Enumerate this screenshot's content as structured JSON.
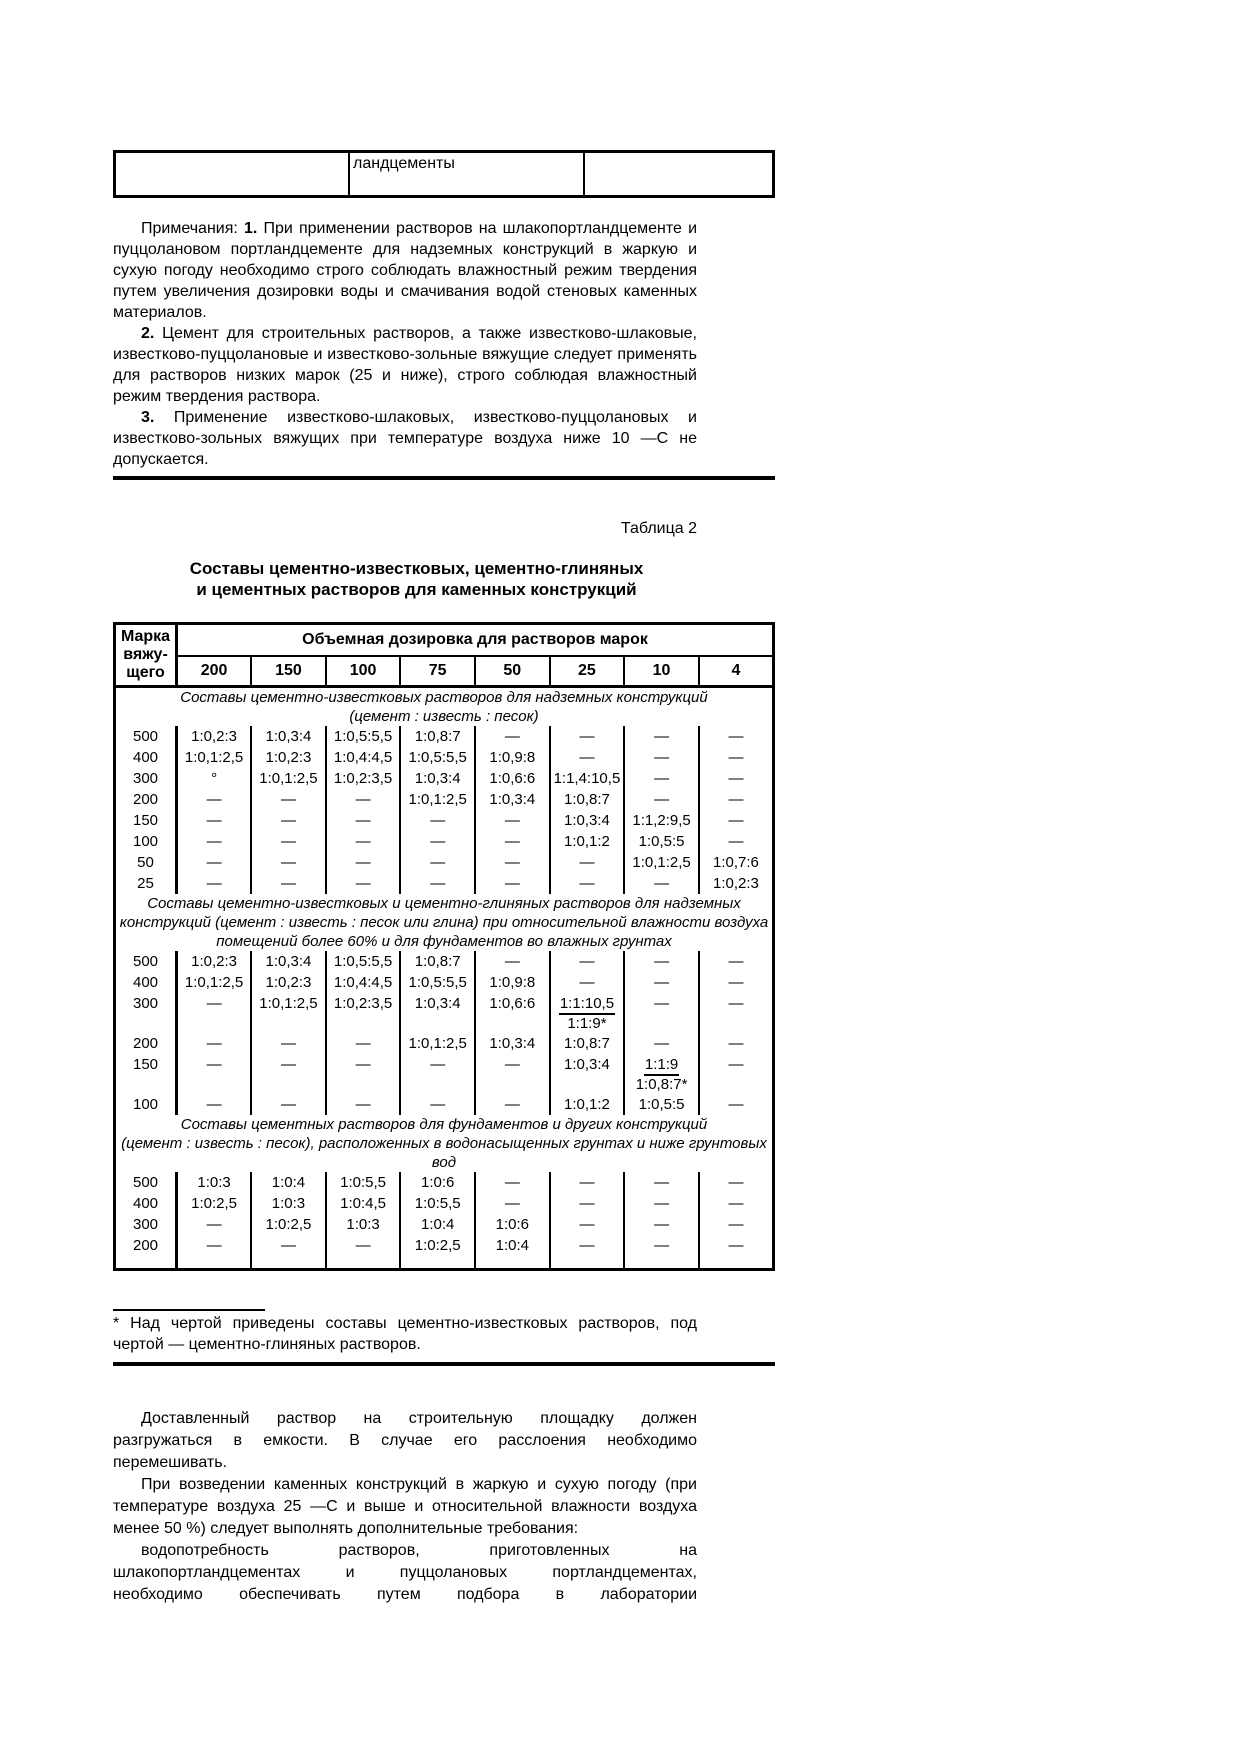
{
  "top_fragment": {
    "cell1": "",
    "cell2": "ландцементы",
    "cell3": ""
  },
  "notes": {
    "label": "Примечания:",
    "items": [
      {
        "num": "1.",
        "text": "При применении растворов на шлакопортландцементе и пуццолановом портландцементе для надземных конструкций в жаркую и сухую погоду необходимо строго соблюдать влажностный режим твердения путем увеличения дозировки воды и смачивания водой стеновых каменных материалов."
      },
      {
        "num": "2.",
        "text": "Цемент для строительных растворов, а также известково-шлаковые, известково-пуццолановые и известково-зольные вяжущие следует применять для растворов низких марок (25 и ниже), строго соблюдая влажностный режим твердения раствора."
      },
      {
        "num": "3.",
        "text": "Применение известково-шлаковых, известково-пуццолановых и известково-зольных вяжущих при температуре воздуха ниже 10 —С не допускается."
      }
    ]
  },
  "table2": {
    "label": "Таблица 2",
    "title_line1": "Составы цементно-известковых, цементно-глиняных",
    "title_line2": "и цементных растворов для каменных конструкций",
    "header": {
      "col1": "Марка\nвяжу-\nщего",
      "span": "Объемная дозировка для растворов марок",
      "grades": [
        "200",
        "150",
        "100",
        "75",
        "50",
        "25",
        "10",
        "4"
      ]
    },
    "sections": [
      {
        "caption_lines": [
          "Составы цементно-известковых растворов для надземных конструкций",
          "(цемент : известь : песок)"
        ],
        "compact": true,
        "rows": [
          {
            "mark": "500",
            "cells": [
              "1:0,2:3",
              "1:0,3:4",
              "1:0,5:5,5",
              "1:0,8:7",
              "—",
              "—",
              "—",
              "—"
            ]
          },
          {
            "mark": "400",
            "cells": [
              "1:0,1:2,5",
              "1:0,2:3",
              "1:0,4:4,5",
              "1:0,5:5,5",
              "1:0,9:8",
              "—",
              "—",
              "—"
            ]
          },
          {
            "mark": "300",
            "cells": [
              "°",
              "1:0,1:2,5",
              "1:0,2:3,5",
              "1:0,3:4",
              "1:0,6:6",
              "1:1,4:10,5",
              "—",
              "—"
            ]
          },
          {
            "mark": "200",
            "cells": [
              "—",
              "—",
              "—",
              "1:0,1:2,5",
              "1:0,3:4",
              "1:0,8:7",
              "—",
              "—"
            ]
          },
          {
            "mark": "150",
            "cells": [
              "—",
              "—",
              "—",
              "—",
              "—",
              "1:0,3:4",
              "1:1,2:9,5",
              "—"
            ]
          },
          {
            "mark": "100",
            "cells": [
              "—",
              "—",
              "—",
              "—",
              "—",
              "1:0,1:2",
              "1:0,5:5",
              "—"
            ]
          },
          {
            "mark": "50",
            "cells": [
              "—",
              "—",
              "—",
              "—",
              "—",
              "—",
              "1:0,1:2,5",
              "1:0,7:6"
            ]
          },
          {
            "mark": "25",
            "cells": [
              "—",
              "—",
              "—",
              "—",
              "—",
              "—",
              "—",
              "1:0,2:3"
            ]
          }
        ]
      },
      {
        "caption_lines": [
          "Составы цементно-известковых и цементно-глиняных растворов для надземных",
          "конструкций (цемент : известь : песок или глина) при относительной влажности воздуха",
          "помещений более 60% и для фундаментов во влажных грунтах"
        ],
        "compact": false,
        "rows": [
          {
            "mark": "500",
            "cells": [
              "1:0,2:3",
              "1:0,3:4",
              "1:0,5:5,5",
              "1:0,8:7",
              "—",
              "—",
              "—",
              "—"
            ]
          },
          {
            "mark": "400",
            "cells": [
              "1:0,1:2,5",
              "1:0,2:3",
              "1:0,4:4,5",
              "1:0,5:5,5",
              "1:0,9:8",
              "—",
              "—",
              "—"
            ]
          },
          {
            "mark": "300",
            "cells": [
              "—",
              "1:0,1:2,5",
              "1:0,2:3,5",
              "1:0,3:4",
              "1:0,6:6",
              {
                "over": "1:1:10,5",
                "under": "1:1:9*"
              },
              "—",
              "—"
            ]
          },
          {
            "mark": "200",
            "cells": [
              "—",
              "—",
              "—",
              "1:0,1:2,5",
              "1:0,3:4",
              "1:0,8:7",
              "—",
              "—"
            ]
          },
          {
            "mark": "150",
            "cells": [
              "—",
              "—",
              "—",
              "—",
              "—",
              "1:0,3:4",
              {
                "over": "1:1:9",
                "under": "1:0,8:7*"
              },
              "—"
            ]
          },
          {
            "mark": "100",
            "cells": [
              "—",
              "—",
              "—",
              "—",
              "—",
              "1:0,1:2",
              "1:0,5:5",
              "—"
            ]
          }
        ]
      },
      {
        "caption_lines": [
          "Составы цементных растворов для фундаментов и других конструкций",
          "(цемент : известь : песок), расположенных в водонасыщенных грунтах и ниже грунтовых вод"
        ],
        "compact": true,
        "rows": [
          {
            "mark": "500",
            "cells": [
              "1:0:3",
              "1:0:4",
              "1:0:5,5",
              "1:0:6",
              "—",
              "—",
              "—",
              "—"
            ]
          },
          {
            "mark": "400",
            "cells": [
              "1:0:2,5",
              "1:0:3",
              "1:0:4,5",
              "1:0:5,5",
              "—",
              "—",
              "—",
              "—"
            ]
          },
          {
            "mark": "300",
            "cells": [
              "—",
              "1:0:2,5",
              "1:0:3",
              "1:0:4",
              "1:0:6",
              "—",
              "—",
              "—"
            ]
          },
          {
            "mark": "200",
            "cells": [
              "—",
              "—",
              "—",
              "1:0:2,5",
              "1:0:4",
              "—",
              "—",
              "—"
            ]
          }
        ]
      }
    ]
  },
  "footnote": {
    "text": "* Над чертой приведены составы цементно-известковых растворов, под чертой — цементно-глиняных растворов."
  },
  "paragraphs": [
    {
      "justify_last": false,
      "lines": [
        "Доставленный раствор на строительную площадку должен",
        "разгружаться в емкости. В случае его расслоения необходимо",
        "перемешивать."
      ]
    },
    {
      "justify_last": false,
      "lines": [
        "При возведении каменных конструкций в жаркую и сухую погоду (при",
        "температуре воздуха 25 —С и выше и относительной влажности воздуха",
        "менее 50 %) следует выполнять дополнительные требования:"
      ]
    },
    {
      "justify_last": true,
      "lines": [
        "водопотребность растворов, приготовленных на",
        "шлакопортландцементах и пуццолановых портландцементах,",
        "необходимо обеспечивать путем подбора в лаборатории"
      ]
    }
  ]
}
